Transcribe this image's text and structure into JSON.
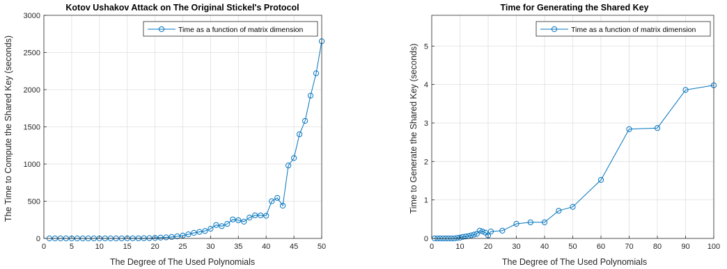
{
  "chart_data": [
    {
      "type": "line",
      "title": "Kotov Ushakov Attack on The Original Stickel's Protocol",
      "xlabel": "The Degree of The Used Polynomials",
      "ylabel": "The Time to Compute the Shared Key (seconds)",
      "xlim": [
        0,
        50
      ],
      "ylim": [
        0,
        3000
      ],
      "xticks": [
        0,
        5,
        10,
        15,
        20,
        25,
        30,
        35,
        40,
        45,
        50
      ],
      "yticks": [
        0,
        500,
        1000,
        1500,
        2000,
        2500,
        3000
      ],
      "grid": true,
      "legend_position": "top-right",
      "marker": "circle",
      "color": "#0072BD",
      "series": [
        {
          "name": "Time as a function of matrix dimension",
          "x": [
            1,
            2,
            3,
            4,
            5,
            6,
            7,
            8,
            9,
            10,
            11,
            12,
            13,
            14,
            15,
            16,
            17,
            18,
            19,
            20,
            21,
            22,
            23,
            24,
            25,
            26,
            27,
            28,
            29,
            30,
            31,
            32,
            33,
            34,
            35,
            36,
            37,
            38,
            39,
            40,
            41,
            42,
            43,
            44,
            45,
            46,
            47,
            48,
            49,
            50
          ],
          "y": [
            0,
            0,
            0,
            0,
            0,
            0,
            0,
            0,
            0,
            0,
            0,
            0,
            0,
            0,
            1,
            1,
            2,
            3,
            4,
            7,
            10,
            14,
            20,
            28,
            38,
            55,
            75,
            88,
            100,
            130,
            180,
            165,
            195,
            255,
            245,
            225,
            280,
            310,
            310,
            305,
            500,
            545,
            440,
            980,
            1080,
            1400,
            1580,
            1920,
            2220,
            2650
          ]
        }
      ]
    },
    {
      "type": "line",
      "title": "Time for Generating the Shared Key",
      "xlabel": "The Degree of The Used Polynomials",
      "ylabel": "Time to Generate the Shared Key (seconds)",
      "xlim": [
        0,
        100
      ],
      "ylim": [
        0,
        5.8
      ],
      "xticks": [
        0,
        10,
        20,
        30,
        40,
        50,
        60,
        70,
        80,
        90,
        100
      ],
      "yticks": [
        0,
        1,
        2,
        3,
        4,
        5
      ],
      "grid": true,
      "legend_position": "top-right",
      "marker": "circle",
      "color": "#0072BD",
      "series": [
        {
          "name": "Time as a function of matrix dimension",
          "x": [
            1,
            2,
            3,
            4,
            5,
            6,
            7,
            8,
            9,
            10,
            11,
            12,
            13,
            14,
            15,
            16,
            17,
            18,
            19,
            20,
            21,
            25,
            30,
            35,
            40,
            45,
            50,
            60,
            70,
            80,
            90,
            100
          ],
          "y": [
            0,
            0,
            0,
            0,
            0,
            0,
            0,
            0,
            0.01,
            0.02,
            0.04,
            0.05,
            0.06,
            0.08,
            0.1,
            0.12,
            0.2,
            0.18,
            0.15,
            0.08,
            0.18,
            0.2,
            0.38,
            0.42,
            0.42,
            0.72,
            0.82,
            1.52,
            2.84,
            2.87,
            3.86,
            3.98
          ]
        }
      ]
    }
  ]
}
